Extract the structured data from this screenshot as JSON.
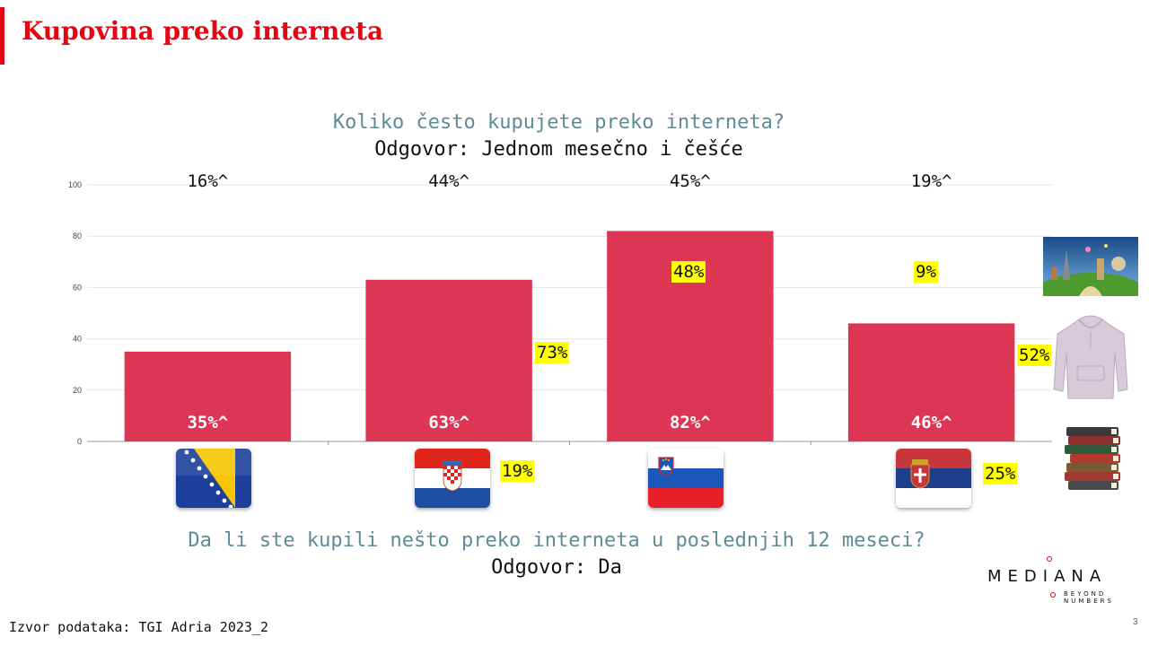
{
  "slide": {
    "title": "Kupovina preko interneta",
    "question_top": "Koliko često kupujete preko interneta?",
    "answer_top": "Odgovor: Jednom mesečno i češće",
    "question_bottom": "Da li ste kupili nešto preko interneta u poslednjih 12 meseci?",
    "answer_bottom": "Odgovor: Da",
    "source": "Izvor podataka: TGI Adria 2023_2",
    "page_number": "3"
  },
  "colors": {
    "accent": "#e30613",
    "bar": "#dc3654",
    "question": "#5f8b97",
    "highlight": "#ffff00"
  },
  "chart_data": {
    "type": "bar",
    "categories": [
      "Bosna i Hercegovina",
      "Hrvatska",
      "Slovenija",
      "Srbija"
    ],
    "values": [
      35,
      63,
      82,
      46
    ],
    "bar_labels": [
      "35%^",
      "63%^",
      "82%^",
      "46%^"
    ],
    "top_labels": [
      "16%^",
      "44%^",
      "45%^",
      "19%^"
    ],
    "ylim": [
      0,
      100
    ],
    "yticks": [
      0,
      20,
      40,
      60,
      80,
      100
    ],
    "grid": true,
    "title": "",
    "xlabel": "",
    "ylabel": ""
  },
  "callouts": {
    "hr_bar": "73%",
    "hr_flag": "19%",
    "si_bar": "48%",
    "rs_bar_top": "9%",
    "rs_bar_side": "52%",
    "rs_flag": "25%"
  },
  "flags": {
    "ba": "bosnia-flag-icon",
    "hr": "croatia-flag-icon",
    "si": "slovenia-flag-icon",
    "rs": "serbia-flag-icon"
  },
  "pictures": [
    "travel-picture",
    "hoodie-picture",
    "books-picture"
  ],
  "logo": {
    "word": "MEDIANA",
    "tagline_1": "BEYOND",
    "tagline_2": "NUMBERS"
  }
}
